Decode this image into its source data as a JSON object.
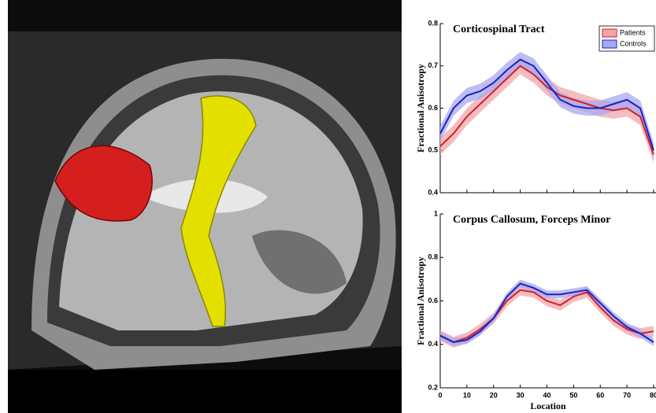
{
  "chart_data": [
    {
      "type": "line",
      "title": "Corticospinal  Tract",
      "y_label": "Fractional  Anisotropy",
      "x": [
        0,
        5,
        10,
        15,
        20,
        25,
        30,
        35,
        40,
        45,
        50,
        55,
        60,
        65,
        70,
        75,
        80
      ],
      "xlim": [
        0,
        80
      ],
      "xticks": [
        0,
        10,
        20,
        30,
        40,
        50,
        60,
        70,
        80
      ],
      "xtick_labels": false,
      "ylim": [
        0.4,
        0.8
      ],
      "yticks": [
        0.4,
        0.5,
        0.6,
        0.7,
        0.8
      ],
      "legend": "upper right",
      "series": [
        {
          "name": "Patients",
          "color": "#d0202a",
          "band_color": "#f2a5ab",
          "ci": 0.02,
          "values": [
            0.51,
            0.54,
            0.58,
            0.61,
            0.64,
            0.67,
            0.7,
            0.68,
            0.65,
            0.63,
            0.62,
            0.61,
            0.6,
            0.595,
            0.6,
            0.58,
            0.49
          ]
        },
        {
          "name": "Controls",
          "color": "#1a22c8",
          "band_color": "#a7a9ee",
          "ci": 0.018,
          "values": [
            0.54,
            0.6,
            0.63,
            0.64,
            0.66,
            0.69,
            0.715,
            0.7,
            0.66,
            0.62,
            0.605,
            0.6,
            0.6,
            0.61,
            0.62,
            0.6,
            0.5
          ]
        }
      ]
    },
    {
      "type": "line",
      "title": "Corpus Callosum, Forceps Minor",
      "y_label": "Fractional  Anisotropy",
      "x_label": "Location",
      "x": [
        0,
        5,
        10,
        15,
        20,
        25,
        30,
        35,
        40,
        45,
        50,
        55,
        60,
        65,
        70,
        75,
        80
      ],
      "xlim": [
        0,
        80
      ],
      "xticks": [
        0,
        10,
        20,
        30,
        40,
        50,
        60,
        70,
        80
      ],
      "xtick_labels": true,
      "ylim": [
        0.2,
        1
      ],
      "yticks": [
        0.2,
        0.4,
        0.6,
        0.8,
        1
      ],
      "series": [
        {
          "name": "Patients",
          "color": "#d0202a",
          "band_color": "#f2a5ab",
          "ci": 0.025,
          "values": [
            0.44,
            0.41,
            0.43,
            0.47,
            0.52,
            0.6,
            0.65,
            0.64,
            0.6,
            0.58,
            0.62,
            0.64,
            0.57,
            0.51,
            0.47,
            0.45,
            0.46
          ]
        },
        {
          "name": "Controls",
          "color": "#1a22c8",
          "band_color": "#a7a9ee",
          "ci": 0.018,
          "values": [
            0.44,
            0.41,
            0.42,
            0.46,
            0.52,
            0.62,
            0.68,
            0.66,
            0.63,
            0.63,
            0.64,
            0.65,
            0.59,
            0.53,
            0.48,
            0.45,
            0.41
          ]
        }
      ]
    }
  ]
}
